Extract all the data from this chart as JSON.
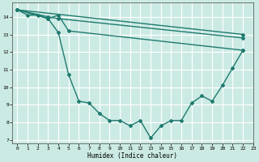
{
  "xlabel": "Humidex (Indice chaleur)",
  "xlim": [
    -0.5,
    23
  ],
  "ylim": [
    6.8,
    14.8
  ],
  "yticks": [
    7,
    8,
    9,
    10,
    11,
    12,
    13,
    14
  ],
  "xticks": [
    0,
    1,
    2,
    3,
    4,
    5,
    6,
    7,
    8,
    9,
    10,
    11,
    12,
    13,
    14,
    15,
    16,
    17,
    18,
    19,
    20,
    21,
    22,
    23
  ],
  "bg_color": "#cceae4",
  "grid_color": "#ffffff",
  "line_color": "#1e7a6e",
  "lines": [
    {
      "x": [
        0,
        1,
        2,
        3,
        4,
        5,
        6,
        7,
        8,
        9,
        10,
        11,
        12,
        13,
        14,
        15,
        16,
        17,
        18,
        19,
        20,
        21,
        22
      ],
      "y": [
        14.4,
        14.1,
        14.1,
        13.9,
        13.1,
        10.7,
        9.2,
        9.1,
        8.5,
        8.1,
        8.1,
        7.8,
        8.1,
        7.1,
        7.8,
        8.1,
        8.1,
        9.1,
        9.5,
        9.2,
        10.1,
        11.1,
        12.1
      ],
      "linewidth": 1.0,
      "linestyle": "-",
      "marker": "D",
      "markersize": 2.0
    },
    {
      "x": [
        0,
        22
      ],
      "y": [
        14.4,
        13.0
      ],
      "linewidth": 1.0,
      "linestyle": "-",
      "marker": "D",
      "markersize": 2.0
    },
    {
      "x": [
        0,
        3,
        4,
        22
      ],
      "y": [
        14.4,
        14.0,
        13.9,
        12.8
      ],
      "linewidth": 1.0,
      "linestyle": "-",
      "marker": "D",
      "markersize": 2.0
    },
    {
      "x": [
        0,
        3,
        4,
        5,
        22
      ],
      "y": [
        14.4,
        13.9,
        14.1,
        13.2,
        12.1
      ],
      "linewidth": 1.0,
      "linestyle": "-",
      "marker": "D",
      "markersize": 2.0
    }
  ]
}
